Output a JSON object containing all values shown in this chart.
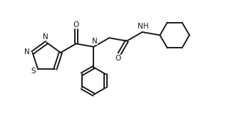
{
  "bg_color": "#ffffff",
  "line_color": "#1a1a1a",
  "line_width": 1.4,
  "fig_width": 3.52,
  "fig_height": 1.94,
  "dpi": 100,
  "xlim": [
    0,
    9.5
  ],
  "ylim": [
    0,
    5.2
  ]
}
